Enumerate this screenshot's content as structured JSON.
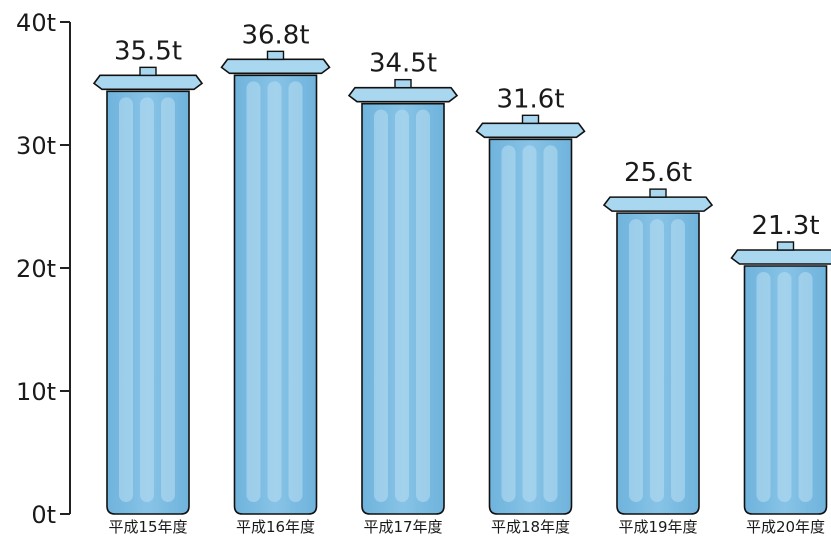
{
  "chart_data": {
    "type": "bar",
    "categories": [
      "平成15年度",
      "平成16年度",
      "平成17年度",
      "平成18年度",
      "平成19年度",
      "平成20年度"
    ],
    "values": [
      35.5,
      36.8,
      34.5,
      31.6,
      25.6,
      21.3
    ],
    "value_labels": [
      "35.5t",
      "36.8t",
      "34.5t",
      "31.6t",
      "25.6t",
      "21.3t"
    ],
    "ylim": [
      0,
      40
    ],
    "yticks": [
      0,
      10,
      20,
      30,
      40
    ],
    "ytick_labels": [
      "0t",
      "10t",
      "20t",
      "30t",
      "40t"
    ],
    "title": "",
    "xlabel": "",
    "ylabel": "",
    "grid": false,
    "colors": {
      "bar_fill": "#87c3e6",
      "bar_stroke": "#111111",
      "bar_stripe": "#b9def2",
      "lid_fill": "#a9d7f0",
      "axis": "#222222"
    }
  }
}
